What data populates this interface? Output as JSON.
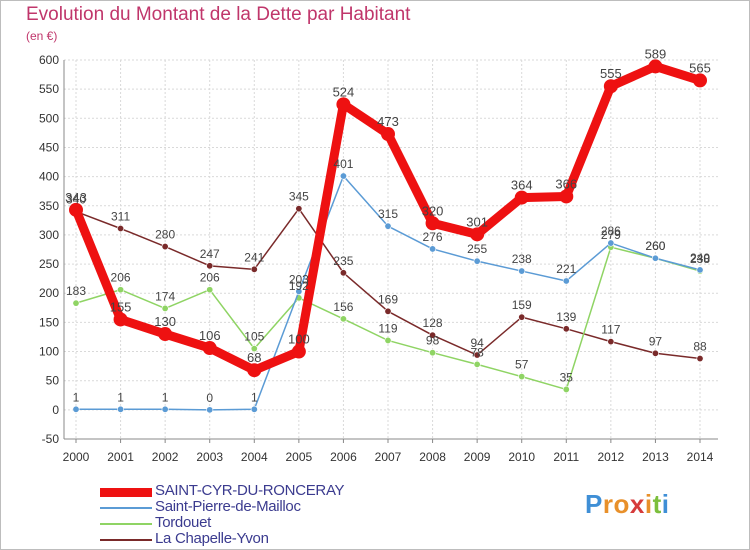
{
  "chart_data": {
    "type": "line",
    "title": "Evolution du Montant de la Dette par Habitant",
    "subtitle": "(en €)",
    "x": [
      "2000",
      "2001",
      "2002",
      "2003",
      "2004",
      "2005",
      "2006",
      "2007",
      "2008",
      "2009",
      "2010",
      "2011",
      "2012",
      "2013",
      "2014"
    ],
    "ylim": [
      -50,
      600
    ],
    "yticks": [
      -50,
      0,
      50,
      100,
      150,
      200,
      250,
      300,
      350,
      400,
      450,
      500,
      550,
      600
    ],
    "grid": true,
    "legend_position": "bottom-left",
    "series": [
      {
        "name": "SAINT-CYR-DU-RONCERAY",
        "color": "#ee1111",
        "values": [
          343,
          155,
          130,
          106,
          68,
          100,
          524,
          473,
          320,
          301,
          364,
          366,
          555,
          589,
          565
        ],
        "labels": [
          "343",
          "155",
          "130",
          "106",
          "68",
          "100",
          "524",
          "473",
          "320",
          "301",
          "364",
          "366",
          "555",
          "589",
          "565"
        ]
      },
      {
        "name": "Saint-Pierre-de-Mailloc",
        "color": "#5b9bd5",
        "values": [
          1,
          1,
          1,
          0,
          1,
          203,
          401,
          315,
          276,
          255,
          238,
          221,
          286,
          260,
          240
        ],
        "labels": [
          "1",
          "1",
          "1",
          "0",
          "1",
          "203",
          "401",
          "315",
          "276",
          "255",
          "238",
          "221",
          "286",
          "260",
          "240"
        ]
      },
      {
        "name": "Tordouet",
        "color": "#8fd464",
        "values": [
          183,
          206,
          174,
          206,
          105,
          192,
          156,
          119,
          98,
          78,
          57,
          35,
          279,
          260,
          238
        ],
        "labels": [
          "183",
          "206",
          "174",
          "206",
          "105",
          "192",
          "156",
          "119",
          "98",
          "78",
          "57",
          "35",
          "279",
          "260",
          "238"
        ]
      },
      {
        "name": "La Chapelle-Yvon",
        "color": "#7a2a2a",
        "values": [
          340,
          311,
          280,
          247,
          241,
          345,
          235,
          169,
          128,
          94,
          159,
          139,
          117,
          97,
          88
        ],
        "labels": [
          "340",
          "311",
          "280",
          "247",
          "241",
          "345",
          "235",
          "169",
          "128",
          "94",
          "159",
          "139",
          "117",
          "97",
          "88"
        ]
      }
    ]
  },
  "logo": {
    "letters": [
      "P",
      "r",
      "o",
      "x",
      "i",
      "t",
      "i"
    ],
    "colors": [
      "#3f8fd6",
      "#e8902a",
      "#e8902a",
      "#d63b3b",
      "#e8902a",
      "#7cbf3c",
      "#3f8fd6"
    ]
  }
}
